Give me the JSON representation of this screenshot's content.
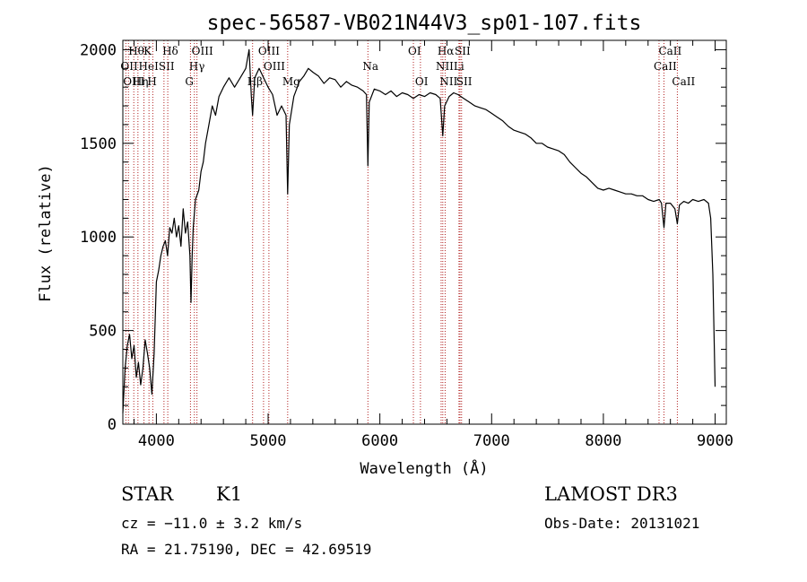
{
  "chart_data": {
    "type": "line",
    "title": "spec-56587-VB021N44V3_sp01-107.fits",
    "xlabel": "Wavelength (Å)",
    "ylabel": "Flux (relative)",
    "xlim": [
      3700,
      9100
    ],
    "ylim": [
      0,
      2050
    ],
    "xticks": [
      4000,
      5000,
      6000,
      7000,
      8000,
      9000
    ],
    "yticks": [
      0,
      500,
      1000,
      1500,
      2000
    ],
    "series": [
      {
        "name": "flux",
        "color": "#000000",
        "points": [
          [
            3700,
            60
          ],
          [
            3720,
            300
          ],
          [
            3740,
            420
          ],
          [
            3760,
            480
          ],
          [
            3780,
            350
          ],
          [
            3800,
            420
          ],
          [
            3820,
            250
          ],
          [
            3840,
            330
          ],
          [
            3860,
            210
          ],
          [
            3880,
            300
          ],
          [
            3900,
            450
          ],
          [
            3920,
            380
          ],
          [
            3940,
            300
          ],
          [
            3960,
            160
          ],
          [
            3980,
            380
          ],
          [
            4000,
            760
          ],
          [
            4020,
            820
          ],
          [
            4040,
            900
          ],
          [
            4060,
            950
          ],
          [
            4080,
            980
          ],
          [
            4100,
            900
          ],
          [
            4120,
            1050
          ],
          [
            4140,
            1020
          ],
          [
            4160,
            1100
          ],
          [
            4180,
            1000
          ],
          [
            4200,
            1060
          ],
          [
            4220,
            950
          ],
          [
            4240,
            1150
          ],
          [
            4260,
            1020
          ],
          [
            4280,
            1080
          ],
          [
            4300,
            900
          ],
          [
            4310,
            650
          ],
          [
            4320,
            900
          ],
          [
            4330,
            1050
          ],
          [
            4350,
            1200
          ],
          [
            4380,
            1250
          ],
          [
            4400,
            1350
          ],
          [
            4420,
            1400
          ],
          [
            4440,
            1500
          ],
          [
            4470,
            1600
          ],
          [
            4500,
            1700
          ],
          [
            4530,
            1650
          ],
          [
            4560,
            1750
          ],
          [
            4600,
            1800
          ],
          [
            4650,
            1850
          ],
          [
            4700,
            1800
          ],
          [
            4750,
            1850
          ],
          [
            4800,
            1900
          ],
          [
            4830,
            2000
          ],
          [
            4850,
            1750
          ],
          [
            4861,
            1650
          ],
          [
            4880,
            1850
          ],
          [
            4920,
            1900
          ],
          [
            4960,
            1850
          ],
          [
            5000,
            1800
          ],
          [
            5040,
            1760
          ],
          [
            5080,
            1650
          ],
          [
            5120,
            1700
          ],
          [
            5160,
            1650
          ],
          [
            5175,
            1230
          ],
          [
            5190,
            1600
          ],
          [
            5230,
            1750
          ],
          [
            5280,
            1830
          ],
          [
            5320,
            1860
          ],
          [
            5360,
            1900
          ],
          [
            5400,
            1880
          ],
          [
            5450,
            1860
          ],
          [
            5500,
            1820
          ],
          [
            5550,
            1850
          ],
          [
            5600,
            1840
          ],
          [
            5650,
            1800
          ],
          [
            5700,
            1830
          ],
          [
            5750,
            1810
          ],
          [
            5800,
            1800
          ],
          [
            5850,
            1780
          ],
          [
            5880,
            1760
          ],
          [
            5893,
            1380
          ],
          [
            5905,
            1720
          ],
          [
            5950,
            1790
          ],
          [
            6000,
            1780
          ],
          [
            6050,
            1760
          ],
          [
            6100,
            1780
          ],
          [
            6150,
            1750
          ],
          [
            6200,
            1770
          ],
          [
            6250,
            1760
          ],
          [
            6300,
            1740
          ],
          [
            6350,
            1760
          ],
          [
            6400,
            1750
          ],
          [
            6450,
            1770
          ],
          [
            6500,
            1760
          ],
          [
            6540,
            1740
          ],
          [
            6563,
            1540
          ],
          [
            6580,
            1700
          ],
          [
            6620,
            1750
          ],
          [
            6660,
            1770
          ],
          [
            6700,
            1760
          ],
          [
            6750,
            1740
          ],
          [
            6800,
            1720
          ],
          [
            6850,
            1700
          ],
          [
            6900,
            1690
          ],
          [
            6950,
            1680
          ],
          [
            7000,
            1660
          ],
          [
            7050,
            1640
          ],
          [
            7100,
            1620
          ],
          [
            7150,
            1590
          ],
          [
            7200,
            1570
          ],
          [
            7250,
            1560
          ],
          [
            7300,
            1550
          ],
          [
            7350,
            1530
          ],
          [
            7400,
            1500
          ],
          [
            7450,
            1500
          ],
          [
            7500,
            1480
          ],
          [
            7550,
            1470
          ],
          [
            7600,
            1460
          ],
          [
            7650,
            1440
          ],
          [
            7700,
            1400
          ],
          [
            7750,
            1370
          ],
          [
            7800,
            1340
          ],
          [
            7850,
            1320
          ],
          [
            7900,
            1290
          ],
          [
            7950,
            1260
          ],
          [
            8000,
            1250
          ],
          [
            8050,
            1260
          ],
          [
            8100,
            1250
          ],
          [
            8150,
            1240
          ],
          [
            8200,
            1230
          ],
          [
            8250,
            1230
          ],
          [
            8300,
            1220
          ],
          [
            8350,
            1220
          ],
          [
            8400,
            1200
          ],
          [
            8450,
            1190
          ],
          [
            8500,
            1200
          ],
          [
            8520,
            1180
          ],
          [
            8542,
            1050
          ],
          [
            8560,
            1180
          ],
          [
            8600,
            1180
          ],
          [
            8640,
            1150
          ],
          [
            8662,
            1070
          ],
          [
            8680,
            1170
          ],
          [
            8720,
            1190
          ],
          [
            8760,
            1180
          ],
          [
            8800,
            1200
          ],
          [
            8850,
            1190
          ],
          [
            8900,
            1200
          ],
          [
            8940,
            1180
          ],
          [
            8960,
            1100
          ],
          [
            8980,
            800
          ],
          [
            9000,
            200
          ]
        ]
      }
    ],
    "lines": [
      {
        "label": "Hθ",
        "wave": 3798,
        "row": 1
      },
      {
        "label": "OII",
        "wave": 3727,
        "row": 2
      },
      {
        "label": "OIII",
        "wave": 3750,
        "row": 3
      },
      {
        "label": "K",
        "wave": 3934,
        "row": 1
      },
      {
        "label": "HeI",
        "wave": 3889,
        "row": 2
      },
      {
        "label": "Hη",
        "wave": 3835,
        "row": 3
      },
      {
        "label": "SII",
        "wave": 4068,
        "row": 2
      },
      {
        "label": "H",
        "wave": 3968,
        "row": 3
      },
      {
        "label": "Hδ",
        "wave": 4102,
        "row": 1
      },
      {
        "label": "OIII",
        "wave": 4363,
        "row": 1
      },
      {
        "label": "Hγ",
        "wave": 4340,
        "row": 2
      },
      {
        "label": "G",
        "wave": 4305,
        "row": 3
      },
      {
        "label": "OIII",
        "wave": 4959,
        "row": 1
      },
      {
        "label": "OIII",
        "wave": 5007,
        "row": 2
      },
      {
        "label": "Hβ",
        "wave": 4861,
        "row": 3
      },
      {
        "label": "Mg",
        "wave": 5175,
        "row": 3
      },
      {
        "label": "Na",
        "wave": 5893,
        "row": 2
      },
      {
        "label": "OI",
        "wave": 6300,
        "row": 1
      },
      {
        "label": "OI",
        "wave": 6363,
        "row": 3
      },
      {
        "label": "Hα",
        "wave": 6563,
        "row": 1
      },
      {
        "label": "SII",
        "wave": 6717,
        "row": 1
      },
      {
        "label": "NII",
        "wave": 6548,
        "row": 2
      },
      {
        "label": "Li",
        "wave": 6708,
        "row": 2
      },
      {
        "label": "NII",
        "wave": 6584,
        "row": 3
      },
      {
        "label": "SII",
        "wave": 6731,
        "row": 3
      },
      {
        "label": "CaII",
        "wave": 8542,
        "row": 1
      },
      {
        "label": "CaII",
        "wave": 8498,
        "row": 2
      },
      {
        "label": "CaII",
        "wave": 8662,
        "row": 3
      }
    ]
  },
  "info": {
    "object": "STAR",
    "subclass": "K1",
    "survey": "LAMOST DR3",
    "redshift": "cz = −11.0 ± 3.2 km/s",
    "obs_date": "Obs-Date: 20131021",
    "coords": "RA =  21.75190, DEC =  42.69519"
  }
}
